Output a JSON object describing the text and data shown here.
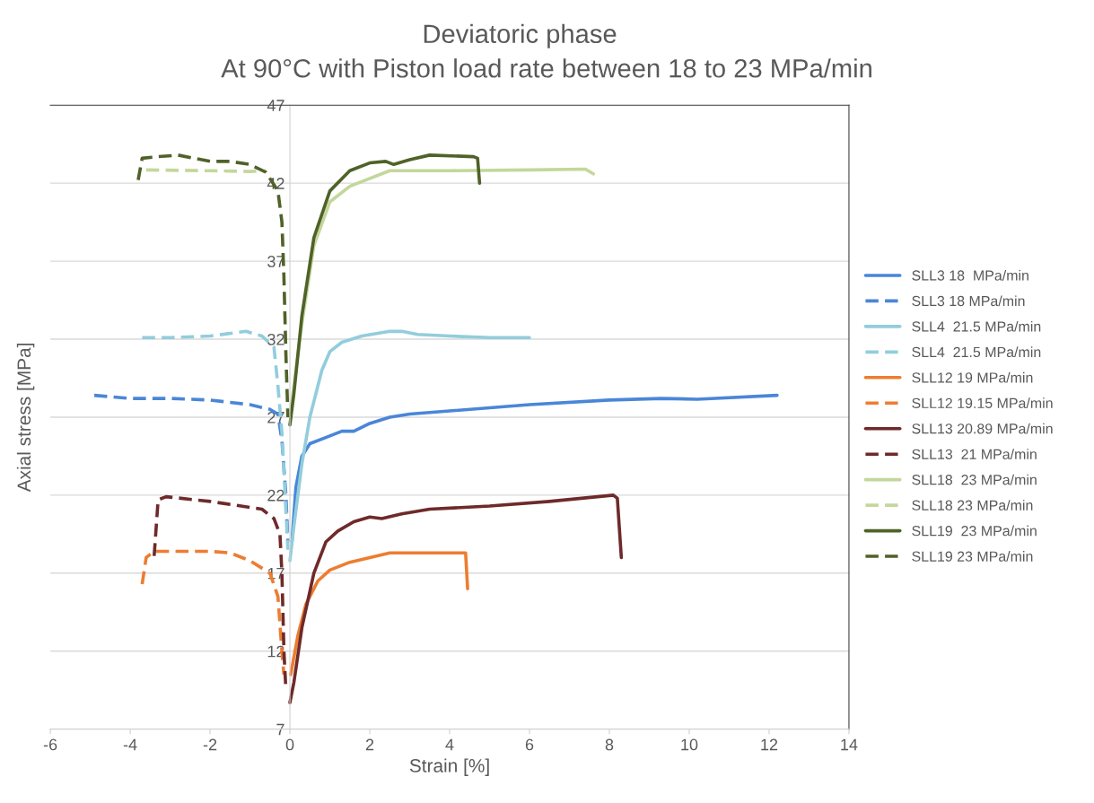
{
  "chart_data": {
    "type": "line",
    "title": "Deviatoric phase",
    "subtitle": "At 90°C with Piston load rate between 18 to 23 MPa/min",
    "xlabel": "Strain [%]",
    "ylabel": "Axial stress [MPa]",
    "xlim": [
      -6,
      14
    ],
    "xticks": [
      -6,
      -4,
      -2,
      0,
      2,
      4,
      6,
      8,
      10,
      12,
      14
    ],
    "ylim": [
      7,
      47
    ],
    "yticks": [
      7,
      12,
      17,
      22,
      27,
      32,
      37,
      42,
      47
    ],
    "grid": "y",
    "legend": "right",
    "marker": "none",
    "series": [
      {
        "name": "SLL3 18  MPa/min",
        "color": "#4a86d8",
        "line_style": "solid",
        "x": [
          0.05,
          0.15,
          0.3,
          0.5,
          1,
          1.3,
          1.6,
          2,
          2.5,
          3,
          4,
          6,
          8,
          9.3,
          10.2,
          12.2
        ],
        "values": [
          19,
          22.5,
          24.5,
          25.3,
          25.8,
          26.1,
          26.1,
          26.6,
          27,
          27.2,
          27.4,
          27.8,
          28.1,
          28.2,
          28.15,
          28.4
        ]
      },
      {
        "name": "SLL3 18 MPa/min",
        "color": "#4a86d8",
        "line_style": "dashed",
        "x": [
          -4.9,
          -4,
          -3,
          -2,
          -1,
          -0.5,
          -0.3,
          -0.2,
          -0.1,
          -0.05
        ],
        "values": [
          28.4,
          28.2,
          28.2,
          28.1,
          27.8,
          27.5,
          27.2,
          25.5,
          22,
          19
        ]
      },
      {
        "name": "SLL4  21.5 MPa/min",
        "color": "#92cddc",
        "line_style": "solid",
        "x": [
          0,
          0.1,
          0.3,
          0.5,
          0.8,
          1,
          1.3,
          1.8,
          2.5,
          2.8,
          3.2,
          4,
          5,
          6
        ],
        "values": [
          17.8,
          20,
          24,
          27,
          30,
          31.2,
          31.8,
          32.2,
          32.5,
          32.5,
          32.3,
          32.2,
          32.1,
          32.1
        ]
      },
      {
        "name": "SLL4  21.5 MPa/min",
        "color": "#92cddc",
        "line_style": "dashed",
        "x": [
          -3.7,
          -3,
          -2,
          -1.1,
          -0.7,
          -0.4,
          -0.3,
          -0.2,
          -0.12,
          -0.05
        ],
        "values": [
          32.1,
          32.1,
          32.2,
          32.5,
          32.2,
          31.5,
          29,
          26,
          22,
          18.5
        ]
      },
      {
        "name": "SLL12 19 MPa/min",
        "color": "#ed7d31",
        "line_style": "solid",
        "x": [
          0.02,
          0.2,
          0.4,
          0.7,
          1,
          1.5,
          2,
          2.5,
          3,
          4,
          4.4,
          4.45
        ],
        "values": [
          10.5,
          13,
          15,
          16.5,
          17.2,
          17.7,
          18,
          18.3,
          18.3,
          18.3,
          18.3,
          16
        ]
      },
      {
        "name": "SLL12 19.15 MPa/min",
        "color": "#ed7d31",
        "line_style": "dashed",
        "x": [
          -3.7,
          -3.6,
          -3.4,
          -2,
          -1.5,
          -1,
          -0.5,
          -0.3,
          -0.2,
          -0.15
        ],
        "values": [
          16.3,
          18,
          18.4,
          18.4,
          18.3,
          17.8,
          17,
          15.5,
          12,
          10.5
        ]
      },
      {
        "name": "SLL13 20.89 MPa/min",
        "color": "#6e2a2a",
        "line_style": "solid",
        "x": [
          0,
          0.1,
          0.3,
          0.6,
          0.9,
          1.2,
          1.6,
          2,
          2.3,
          2.8,
          3.5,
          5,
          6.5,
          8.1,
          8.2,
          8.3
        ],
        "values": [
          8.7,
          10,
          13.5,
          17,
          19,
          19.7,
          20.3,
          20.6,
          20.5,
          20.8,
          21.1,
          21.3,
          21.6,
          22,
          21.8,
          18
        ]
      },
      {
        "name": "SLL13  21 MPa/min",
        "color": "#6e2a2a",
        "line_style": "dashed",
        "x": [
          -3.4,
          -3.3,
          -3.1,
          -2,
          -0.7,
          -0.4,
          -0.25,
          -0.2,
          -0.15,
          -0.1
        ],
        "values": [
          18.1,
          21.7,
          21.9,
          21.6,
          21.1,
          20.5,
          19.5,
          17,
          12,
          9.5
        ]
      },
      {
        "name": "SLL18  23 MPa/min",
        "color": "#c4d79b",
        "line_style": "solid",
        "x": [
          0,
          0.3,
          0.6,
          1,
          1.5,
          2.5,
          3,
          4,
          6,
          7.4,
          7.6
        ],
        "values": [
          27,
          33,
          38,
          40.8,
          41.8,
          42.8,
          42.8,
          42.8,
          42.85,
          42.9,
          42.6
        ]
      },
      {
        "name": "SLL18 23 MPa/min",
        "color": "#c4d79b",
        "line_style": "dashed",
        "x": [
          -3.6,
          -2,
          -1,
          -0.6
        ],
        "values": [
          42.85,
          42.8,
          42.75,
          42.8
        ]
      },
      {
        "name": "SLL19  23 MPa/min",
        "color": "#4f6228",
        "line_style": "solid",
        "x": [
          0,
          0.1,
          0.3,
          0.6,
          1,
          1.5,
          2,
          2.4,
          2.6,
          3,
          3.5,
          4.6,
          4.7,
          4.75
        ],
        "values": [
          26.5,
          28.5,
          33.5,
          38.5,
          41.5,
          42.8,
          43.3,
          43.4,
          43.2,
          43.5,
          43.8,
          43.7,
          43.6,
          42
        ]
      },
      {
        "name": "SLL19 23 MPa/min",
        "color": "#4f6228",
        "line_style": "dashed",
        "x": [
          -3.8,
          -3.7,
          -3.3,
          -2.8,
          -2,
          -1.5,
          -1,
          -0.6,
          -0.3,
          -0.2,
          -0.15,
          -0.1,
          -0.05
        ],
        "values": [
          42.2,
          43.6,
          43.7,
          43.8,
          43.4,
          43.4,
          43.2,
          42.7,
          41.5,
          39.5,
          36,
          31,
          27
        ]
      }
    ]
  }
}
